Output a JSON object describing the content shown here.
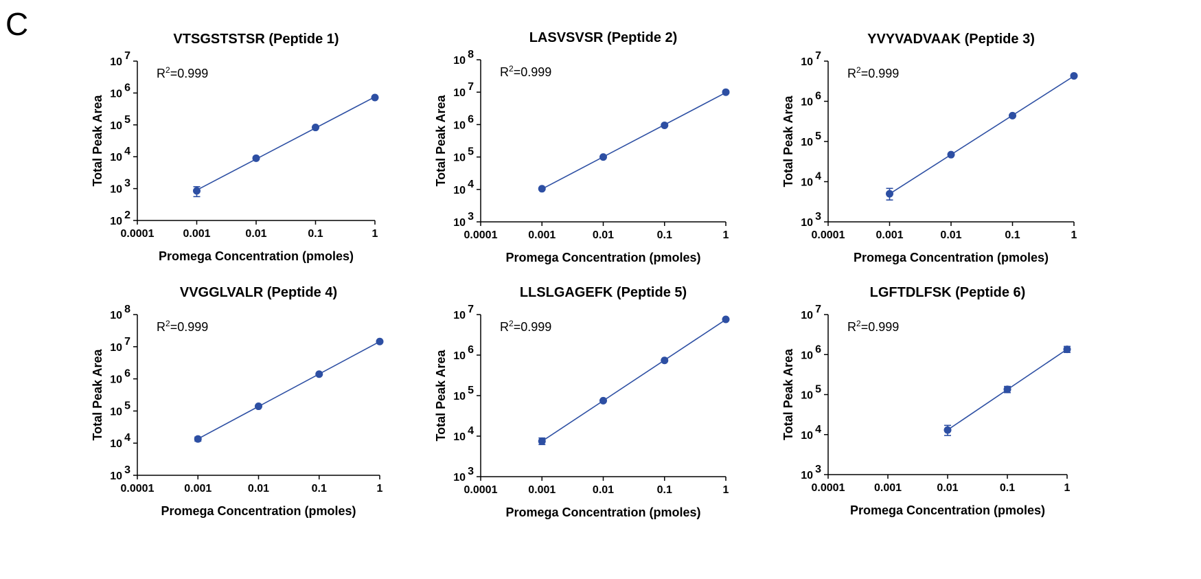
{
  "panel_letter": "C",
  "chart_data": [
    {
      "type": "scatter",
      "title": "VTSGSTSTSR (Peptide 1)",
      "xlabel": "Promega Concentration (pmoles)",
      "ylabel": "Total Peak Area",
      "xscale": "log",
      "yscale": "log",
      "xlim": [
        0.0001,
        1
      ],
      "ylim": [
        100,
        10000000
      ],
      "xticks": [
        "0.0001",
        "0.001",
        "0.01",
        "0.1",
        "1"
      ],
      "yticks": [
        {
          "base": "10",
          "exp": "2"
        },
        {
          "base": "10",
          "exp": "3"
        },
        {
          "base": "10",
          "exp": "4"
        },
        {
          "base": "10",
          "exp": "5"
        },
        {
          "base": "10",
          "exp": "6"
        },
        {
          "base": "10",
          "exp": "7"
        }
      ],
      "annotation": {
        "prefix": "R",
        "sup": "2",
        "suffix": "=0.999"
      },
      "color": "#2d4fa3",
      "points": [
        {
          "x": 0.001,
          "y": 850,
          "err_low": 560,
          "err_high": 1150
        },
        {
          "x": 0.01,
          "y": 9000
        },
        {
          "x": 0.1,
          "y": 83000
        },
        {
          "x": 1,
          "y": 720000
        }
      ],
      "fit": {
        "x0": 0.001,
        "x1": 1
      }
    },
    {
      "type": "scatter",
      "title": "LASVSVSR (Peptide 2)",
      "xlabel": "Promega Concentration (pmoles)",
      "ylabel": "Total Peak Area",
      "xscale": "log",
      "yscale": "log",
      "xlim": [
        0.0001,
        1
      ],
      "ylim": [
        1000,
        100000000
      ],
      "xticks": [
        "0.0001",
        "0.001",
        "0.01",
        "0.1",
        "1"
      ],
      "yticks": [
        {
          "base": "10",
          "exp": "3"
        },
        {
          "base": "10",
          "exp": "4"
        },
        {
          "base": "10",
          "exp": "5"
        },
        {
          "base": "10",
          "exp": "6"
        },
        {
          "base": "10",
          "exp": "7"
        },
        {
          "base": "10",
          "exp": "8"
        }
      ],
      "annotation": {
        "prefix": "R",
        "sup": "2",
        "suffix": "=0.999"
      },
      "color": "#2d4fa3",
      "points": [
        {
          "x": 0.001,
          "y": 10500
        },
        {
          "x": 0.01,
          "y": 100000
        },
        {
          "x": 0.1,
          "y": 950000
        },
        {
          "x": 1,
          "y": 10000000
        }
      ],
      "fit": {
        "x0": 0.001,
        "x1": 1
      }
    },
    {
      "type": "scatter",
      "title": "YVYVADVAAK (Peptide 3)",
      "xlabel": "Promega Concentration (pmoles)",
      "ylabel": "Total Peak Area",
      "xscale": "log",
      "yscale": "log",
      "xlim": [
        0.0001,
        1
      ],
      "ylim": [
        1000,
        10000000
      ],
      "xticks": [
        "0.0001",
        "0.001",
        "0.01",
        "0.1",
        "1"
      ],
      "yticks": [
        {
          "base": "10",
          "exp": "3"
        },
        {
          "base": "10",
          "exp": "4"
        },
        {
          "base": "10",
          "exp": "5"
        },
        {
          "base": "10",
          "exp": "6"
        },
        {
          "base": "10",
          "exp": "7"
        }
      ],
      "annotation": {
        "prefix": "R",
        "sup": "2",
        "suffix": "=0.999"
      },
      "color": "#2d4fa3",
      "points": [
        {
          "x": 0.001,
          "y": 5000,
          "err_low": 3500,
          "err_high": 6800
        },
        {
          "x": 0.01,
          "y": 47000
        },
        {
          "x": 0.1,
          "y": 440000
        },
        {
          "x": 1,
          "y": 4300000
        }
      ],
      "fit": {
        "x0": 0.001,
        "x1": 1
      }
    },
    {
      "type": "scatter",
      "title": "VVGGLVALR (Peptide 4)",
      "xlabel": "Promega Concentration (pmoles)",
      "ylabel": "Total Peak Area",
      "xscale": "log",
      "yscale": "log",
      "xlim": [
        0.0001,
        1
      ],
      "ylim": [
        1000,
        100000000
      ],
      "xticks": [
        "0.0001",
        "0.001",
        "0.01",
        "0.1",
        "1"
      ],
      "yticks": [
        {
          "base": "10",
          "exp": "3"
        },
        {
          "base": "10",
          "exp": "4"
        },
        {
          "base": "10",
          "exp": "5"
        },
        {
          "base": "10",
          "exp": "6"
        },
        {
          "base": "10",
          "exp": "7"
        },
        {
          "base": "10",
          "exp": "8"
        }
      ],
      "annotation": {
        "prefix": "R",
        "sup": "2",
        "suffix": "=0.999"
      },
      "color": "#2d4fa3",
      "points": [
        {
          "x": 0.001,
          "y": 13500,
          "err_low": 11500,
          "err_high": 15500
        },
        {
          "x": 0.01,
          "y": 140000
        },
        {
          "x": 0.1,
          "y": 1400000
        },
        {
          "x": 1,
          "y": 14500000
        }
      ],
      "fit": {
        "x0": 0.001,
        "x1": 1
      }
    },
    {
      "type": "scatter",
      "title": "LLSLGAGEFK (Peptide 5)",
      "xlabel": "Promega Concentration (pmoles)",
      "ylabel": "Total Peak Area",
      "xscale": "log",
      "yscale": "log",
      "xlim": [
        0.0001,
        1
      ],
      "ylim": [
        1000,
        10000000
      ],
      "xticks": [
        "0.0001",
        "0.001",
        "0.01",
        "0.1",
        "1"
      ],
      "yticks": [
        {
          "base": "10",
          "exp": "3"
        },
        {
          "base": "10",
          "exp": "4"
        },
        {
          "base": "10",
          "exp": "5"
        },
        {
          "base": "10",
          "exp": "6"
        },
        {
          "base": "10",
          "exp": "7"
        }
      ],
      "annotation": {
        "prefix": "R",
        "sup": "2",
        "suffix": "=0.999"
      },
      "color": "#2d4fa3",
      "points": [
        {
          "x": 0.001,
          "y": 7500,
          "err_low": 6200,
          "err_high": 9000
        },
        {
          "x": 0.01,
          "y": 75000
        },
        {
          "x": 0.1,
          "y": 740000
        },
        {
          "x": 1,
          "y": 7600000
        }
      ],
      "fit": {
        "x0": 0.001,
        "x1": 1
      }
    },
    {
      "type": "scatter",
      "title": "LGFTDLFSK (Peptide 6)",
      "xlabel": "Promega Concentration (pmoles)",
      "ylabel": "Total Peak Area",
      "xscale": "log",
      "yscale": "log",
      "xlim": [
        0.0001,
        1
      ],
      "ylim": [
        1000,
        10000000
      ],
      "xticks": [
        "0.0001",
        "0.001",
        "0.01",
        "0.1",
        "1"
      ],
      "yticks": [
        {
          "base": "10",
          "exp": "3"
        },
        {
          "base": "10",
          "exp": "4"
        },
        {
          "base": "10",
          "exp": "5"
        },
        {
          "base": "10",
          "exp": "6"
        },
        {
          "base": "10",
          "exp": "7"
        }
      ],
      "annotation": {
        "prefix": "R",
        "sup": "2",
        "suffix": "=0.999"
      },
      "color": "#2d4fa3",
      "points": [
        {
          "x": 0.01,
          "y": 13000,
          "err_low": 9500,
          "err_high": 17000
        },
        {
          "x": 0.1,
          "y": 135000,
          "err_low": 112000,
          "err_high": 160000
        },
        {
          "x": 1,
          "y": 1350000,
          "err_low": 1130000,
          "err_high": 1600000
        }
      ],
      "fit": {
        "x0": 0.01,
        "x1": 1
      }
    }
  ]
}
